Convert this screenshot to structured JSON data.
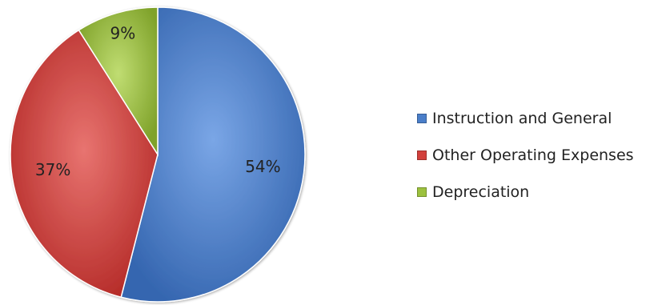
{
  "chart_data": {
    "type": "pie",
    "title": "",
    "legend_position": "right",
    "slices": [
      {
        "label": "Instruction and General",
        "value": 54,
        "display": "54%",
        "color": "#4A7EC9"
      },
      {
        "label": "Other Operating Expenses",
        "value": 37,
        "display": "37%",
        "color": "#D2403C"
      },
      {
        "label": "Depreciation",
        "value": 9,
        "display": "9%",
        "color": "#9CC13E"
      }
    ]
  }
}
